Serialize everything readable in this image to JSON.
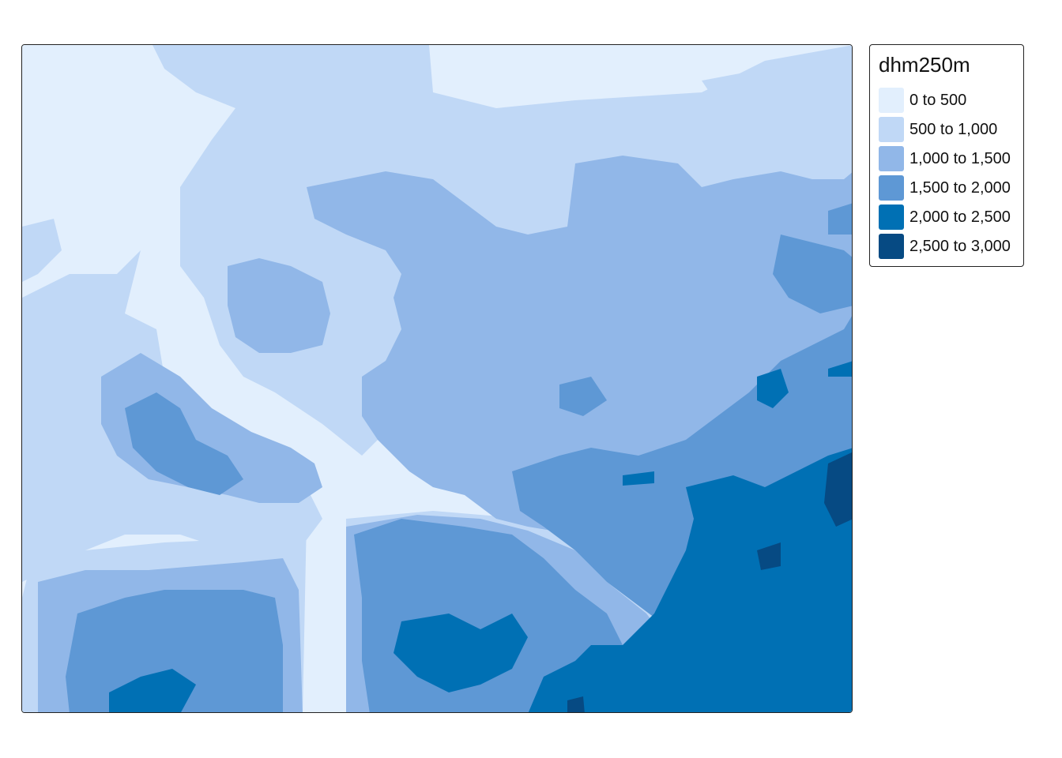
{
  "legend": {
    "title": "dhm250m",
    "items": [
      {
        "label": "0 to 500",
        "color": "#e2effd"
      },
      {
        "label": "500 to 1,000",
        "color": "#c0d8f6"
      },
      {
        "label": "1,000 to 1,500",
        "color": "#91b7e8"
      },
      {
        "label": "1,500 to 2,000",
        "color": "#5e98d5"
      },
      {
        "label": "2,000 to 2,500",
        "color": "#0070b4"
      },
      {
        "label": "2,500 to 3,000",
        "color": "#064a83"
      }
    ]
  }
}
